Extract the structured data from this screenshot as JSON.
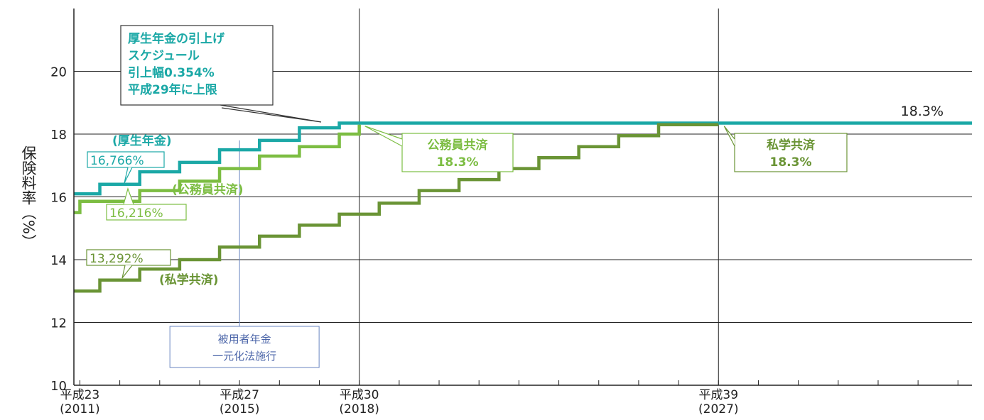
{
  "chart_data": {
    "type": "line",
    "step": true,
    "ylabel": "保険料率（%）",
    "ylim": [
      10,
      22
    ],
    "yticks": [
      10,
      12,
      14,
      16,
      18,
      20
    ],
    "xlim": [
      2010.85,
      2033.35
    ],
    "grid": true,
    "x_tick_labels": [
      {
        "x": 2011,
        "line1": "平成23",
        "line2": "(2011)"
      },
      {
        "x": 2015,
        "line1": "平成27",
        "line2": "(2015)"
      },
      {
        "x": 2018,
        "line1": "平成30",
        "line2": "(2018)"
      },
      {
        "x": 2027,
        "line1": "平成39",
        "line2": "(2027)"
      }
    ],
    "series": [
      {
        "name": "(厚生年金)",
        "color": "#1ba8a6",
        "x": [
          2010.85,
          2011.5,
          2012.5,
          2013.5,
          2014.5,
          2015.5,
          2016.5,
          2017.5,
          2033.35
        ],
        "values": [
          16.1,
          16.4,
          16.8,
          17.1,
          17.5,
          17.8,
          18.2,
          18.35,
          18.35
        ]
      },
      {
        "name": "(公務員共済)",
        "color": "#7cbd42",
        "x": [
          2010.85,
          2011.0,
          2012.5,
          2013.5,
          2014.5,
          2015.5,
          2016.5,
          2017.5,
          2018.0
        ],
        "values": [
          15.5,
          15.86,
          16.2,
          16.5,
          16.9,
          17.3,
          17.6,
          18.0,
          18.3
        ]
      },
      {
        "name": "(私学共済)",
        "color": "#6a9435",
        "x": [
          2010.85,
          2011.5,
          2012.5,
          2013.5,
          2014.5,
          2015.5,
          2016.5,
          2017.5,
          2018.5,
          2019.5,
          2020.5,
          2021.5,
          2022.5,
          2023.5,
          2024.5,
          2025.5,
          2026.5,
          2027.0
        ],
        "values": [
          13.0,
          13.35,
          13.7,
          14.0,
          14.4,
          14.75,
          15.1,
          15.45,
          15.8,
          16.2,
          16.55,
          16.9,
          17.25,
          17.6,
          17.95,
          18.3,
          18.3,
          18.3
        ]
      }
    ],
    "annotations": {
      "kosei_box": [
        "厚生年金の引上げ",
        "スケジュール",
        "引上幅0.354%",
        "平成29年に上限"
      ],
      "kosei_label": "(厚生年金)",
      "kosei_start": "16,766%",
      "komuin_label": "(公務員共済)",
      "komuin_start": "16,216%",
      "shigaku_label": "(私学共済)",
      "shigaku_start": "13,292%",
      "komuin_end": [
        "公務員共済",
        "18.3%"
      ],
      "shigaku_end": [
        "私学共済",
        "18.3%"
      ],
      "final_value": "18.3%",
      "unification": [
        "被用者年金",
        "一元化法施行"
      ],
      "unification_x": 2015
    }
  }
}
